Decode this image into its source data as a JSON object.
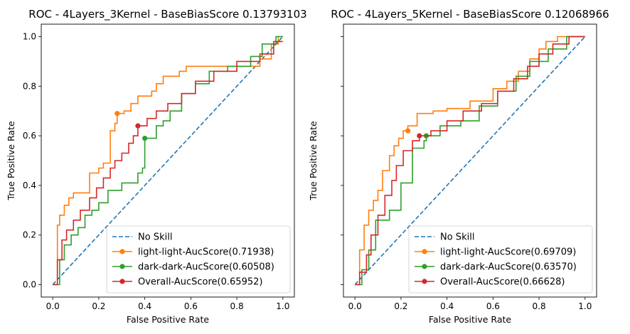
{
  "chart_data": [
    {
      "type": "line",
      "title": "ROC - 4Layers_3Kernel - BaseBiasScore 0.13793103",
      "xlabel": "False Positive Rate",
      "ylabel": "True Positive Rate",
      "xlim": [
        -0.05,
        1.05
      ],
      "ylim": [
        -0.05,
        1.05
      ],
      "xticks": [
        "0.0",
        "0.2",
        "0.4",
        "0.6",
        "0.8",
        "1.0"
      ],
      "yticks": [
        "0.0",
        "0.2",
        "0.4",
        "0.6",
        "0.8",
        "1.0"
      ],
      "legend_position": "lower-right",
      "series": [
        {
          "name": "No Skill",
          "color": "#1f77b4",
          "dashed": true,
          "x": [
            0,
            1
          ],
          "y": [
            0,
            1
          ]
        },
        {
          "name": "light-light-AucScore(0.71938)",
          "color": "#ff7f0e",
          "marker": [
            0.28,
            0.69
          ],
          "x": [
            0,
            0.02,
            0.02,
            0.03,
            0.03,
            0.05,
            0.05,
            0.07,
            0.07,
            0.09,
            0.09,
            0.16,
            0.16,
            0.2,
            0.2,
            0.22,
            0.22,
            0.25,
            0.25,
            0.27,
            0.27,
            0.28,
            0.28,
            0.31,
            0.31,
            0.34,
            0.34,
            0.37,
            0.37,
            0.43,
            0.43,
            0.45,
            0.45,
            0.48,
            0.48,
            0.55,
            0.55,
            0.58,
            0.58,
            0.9,
            0.9,
            0.95,
            0.95,
            0.98,
            0.98,
            1.0
          ],
          "y": [
            0,
            0,
            0.24,
            0.24,
            0.28,
            0.28,
            0.32,
            0.32,
            0.35,
            0.35,
            0.37,
            0.37,
            0.45,
            0.45,
            0.47,
            0.47,
            0.49,
            0.49,
            0.62,
            0.62,
            0.65,
            0.65,
            0.69,
            0.69,
            0.7,
            0.7,
            0.73,
            0.73,
            0.76,
            0.76,
            0.78,
            0.78,
            0.81,
            0.81,
            0.84,
            0.84,
            0.86,
            0.86,
            0.88,
            0.88,
            0.91,
            0.91,
            0.97,
            0.97,
            1.0,
            1.0
          ]
        },
        {
          "name": "dark-dark-AucScore(0.60508)",
          "color": "#2ca02c",
          "marker": [
            0.4,
            0.59
          ],
          "x": [
            0,
            0.03,
            0.03,
            0.05,
            0.05,
            0.08,
            0.08,
            0.11,
            0.11,
            0.14,
            0.14,
            0.17,
            0.17,
            0.2,
            0.2,
            0.24,
            0.24,
            0.3,
            0.3,
            0.37,
            0.37,
            0.39,
            0.39,
            0.4,
            0.4,
            0.45,
            0.45,
            0.48,
            0.48,
            0.51,
            0.51,
            0.56,
            0.56,
            0.62,
            0.62,
            0.68,
            0.68,
            0.76,
            0.76,
            0.86,
            0.86,
            0.91,
            0.91,
            0.97,
            0.97,
            1.0
          ],
          "y": [
            0,
            0,
            0.1,
            0.1,
            0.16,
            0.16,
            0.2,
            0.2,
            0.23,
            0.23,
            0.28,
            0.28,
            0.3,
            0.3,
            0.33,
            0.33,
            0.38,
            0.38,
            0.41,
            0.41,
            0.45,
            0.45,
            0.47,
            0.47,
            0.59,
            0.59,
            0.64,
            0.64,
            0.66,
            0.66,
            0.7,
            0.7,
            0.77,
            0.77,
            0.81,
            0.81,
            0.86,
            0.86,
            0.88,
            0.88,
            0.92,
            0.92,
            0.97,
            0.97,
            1.0,
            1.0
          ]
        },
        {
          "name": "Overall-AucScore(0.65952)",
          "color": "#d62728",
          "marker": [
            0.37,
            0.64
          ],
          "x": [
            0,
            0.02,
            0.02,
            0.04,
            0.04,
            0.06,
            0.06,
            0.09,
            0.09,
            0.12,
            0.12,
            0.16,
            0.16,
            0.19,
            0.19,
            0.22,
            0.22,
            0.25,
            0.25,
            0.27,
            0.27,
            0.3,
            0.3,
            0.33,
            0.33,
            0.35,
            0.35,
            0.37,
            0.37,
            0.41,
            0.41,
            0.45,
            0.45,
            0.5,
            0.5,
            0.56,
            0.56,
            0.62,
            0.62,
            0.7,
            0.7,
            0.8,
            0.8,
            0.9,
            0.9,
            0.96,
            0.96,
            1.0
          ],
          "y": [
            0,
            0,
            0.1,
            0.1,
            0.18,
            0.18,
            0.22,
            0.22,
            0.26,
            0.26,
            0.3,
            0.3,
            0.35,
            0.35,
            0.39,
            0.39,
            0.43,
            0.43,
            0.47,
            0.47,
            0.5,
            0.5,
            0.53,
            0.53,
            0.57,
            0.57,
            0.6,
            0.6,
            0.64,
            0.64,
            0.67,
            0.67,
            0.7,
            0.7,
            0.73,
            0.73,
            0.77,
            0.77,
            0.82,
            0.82,
            0.86,
            0.86,
            0.9,
            0.9,
            0.93,
            0.93,
            0.98,
            0.98
          ]
        }
      ]
    },
    {
      "type": "line",
      "title": "ROC - 4Layers_5Kernel - BaseBiasScore 0.12068966",
      "xlabel": "False Positive Rate",
      "ylabel": "True Positive Rate",
      "xlim": [
        -0.05,
        1.05
      ],
      "ylim": [
        -0.05,
        1.05
      ],
      "xticks": [
        "0.0",
        "0.2",
        "0.4",
        "0.6",
        "0.8",
        "1.0"
      ],
      "yticks": [
        "",
        "",
        "",
        "",
        "",
        ""
      ],
      "legend_position": "lower-right",
      "series": [
        {
          "name": "No Skill",
          "color": "#1f77b4",
          "dashed": true,
          "x": [
            0,
            1
          ],
          "y": [
            0,
            1
          ]
        },
        {
          "name": "light-light-AucScore(0.69709)",
          "color": "#ff7f0e",
          "marker": [
            0.23,
            0.62
          ],
          "x": [
            0,
            0.02,
            0.02,
            0.04,
            0.04,
            0.06,
            0.06,
            0.08,
            0.08,
            0.1,
            0.1,
            0.12,
            0.12,
            0.15,
            0.15,
            0.17,
            0.17,
            0.19,
            0.19,
            0.21,
            0.21,
            0.23,
            0.23,
            0.27,
            0.27,
            0.34,
            0.34,
            0.4,
            0.4,
            0.5,
            0.5,
            0.6,
            0.6,
            0.66,
            0.66,
            0.71,
            0.71,
            0.76,
            0.76,
            0.8,
            0.8,
            0.83,
            0.83,
            0.88,
            0.88,
            1.0
          ],
          "y": [
            0,
            0,
            0.14,
            0.14,
            0.24,
            0.24,
            0.3,
            0.3,
            0.34,
            0.34,
            0.38,
            0.38,
            0.46,
            0.46,
            0.52,
            0.52,
            0.56,
            0.56,
            0.59,
            0.59,
            0.62,
            0.62,
            0.64,
            0.64,
            0.69,
            0.69,
            0.7,
            0.7,
            0.71,
            0.71,
            0.74,
            0.74,
            0.79,
            0.79,
            0.82,
            0.82,
            0.86,
            0.86,
            0.91,
            0.91,
            0.95,
            0.95,
            0.98,
            0.98,
            1.0,
            1.0
          ]
        },
        {
          "name": "dark-dark-AucScore(0.63570)",
          "color": "#2ca02c",
          "marker": [
            0.31,
            0.6
          ],
          "x": [
            0,
            0.03,
            0.03,
            0.06,
            0.06,
            0.09,
            0.09,
            0.15,
            0.15,
            0.2,
            0.2,
            0.25,
            0.25,
            0.3,
            0.3,
            0.31,
            0.31,
            0.37,
            0.37,
            0.46,
            0.46,
            0.54,
            0.54,
            0.62,
            0.62,
            0.7,
            0.7,
            0.76,
            0.76,
            0.84,
            0.84,
            0.92,
            0.92,
            1.0
          ],
          "y": [
            0,
            0,
            0.06,
            0.06,
            0.14,
            0.14,
            0.26,
            0.26,
            0.3,
            0.3,
            0.41,
            0.41,
            0.55,
            0.55,
            0.58,
            0.58,
            0.6,
            0.6,
            0.64,
            0.64,
            0.66,
            0.66,
            0.72,
            0.72,
            0.78,
            0.78,
            0.84,
            0.84,
            0.9,
            0.9,
            0.95,
            0.95,
            1.0,
            1.0
          ]
        },
        {
          "name": "Overall-AucScore(0.66628)",
          "color": "#d62728",
          "marker": [
            0.28,
            0.6
          ],
          "x": [
            0,
            0.02,
            0.02,
            0.05,
            0.05,
            0.07,
            0.07,
            0.1,
            0.1,
            0.13,
            0.13,
            0.16,
            0.16,
            0.18,
            0.18,
            0.21,
            0.21,
            0.25,
            0.25,
            0.28,
            0.28,
            0.33,
            0.33,
            0.4,
            0.4,
            0.47,
            0.47,
            0.55,
            0.55,
            0.62,
            0.62,
            0.69,
            0.69,
            0.75,
            0.75,
            0.8,
            0.8,
            0.86,
            0.86,
            0.93,
            0.93,
            1.0
          ],
          "y": [
            0,
            0,
            0.05,
            0.05,
            0.12,
            0.12,
            0.2,
            0.2,
            0.28,
            0.28,
            0.36,
            0.36,
            0.42,
            0.42,
            0.48,
            0.48,
            0.54,
            0.54,
            0.58,
            0.58,
            0.6,
            0.6,
            0.62,
            0.62,
            0.66,
            0.66,
            0.7,
            0.7,
            0.73,
            0.73,
            0.78,
            0.78,
            0.83,
            0.83,
            0.88,
            0.88,
            0.93,
            0.93,
            0.97,
            0.97,
            1.0,
            1.0
          ]
        }
      ]
    }
  ]
}
